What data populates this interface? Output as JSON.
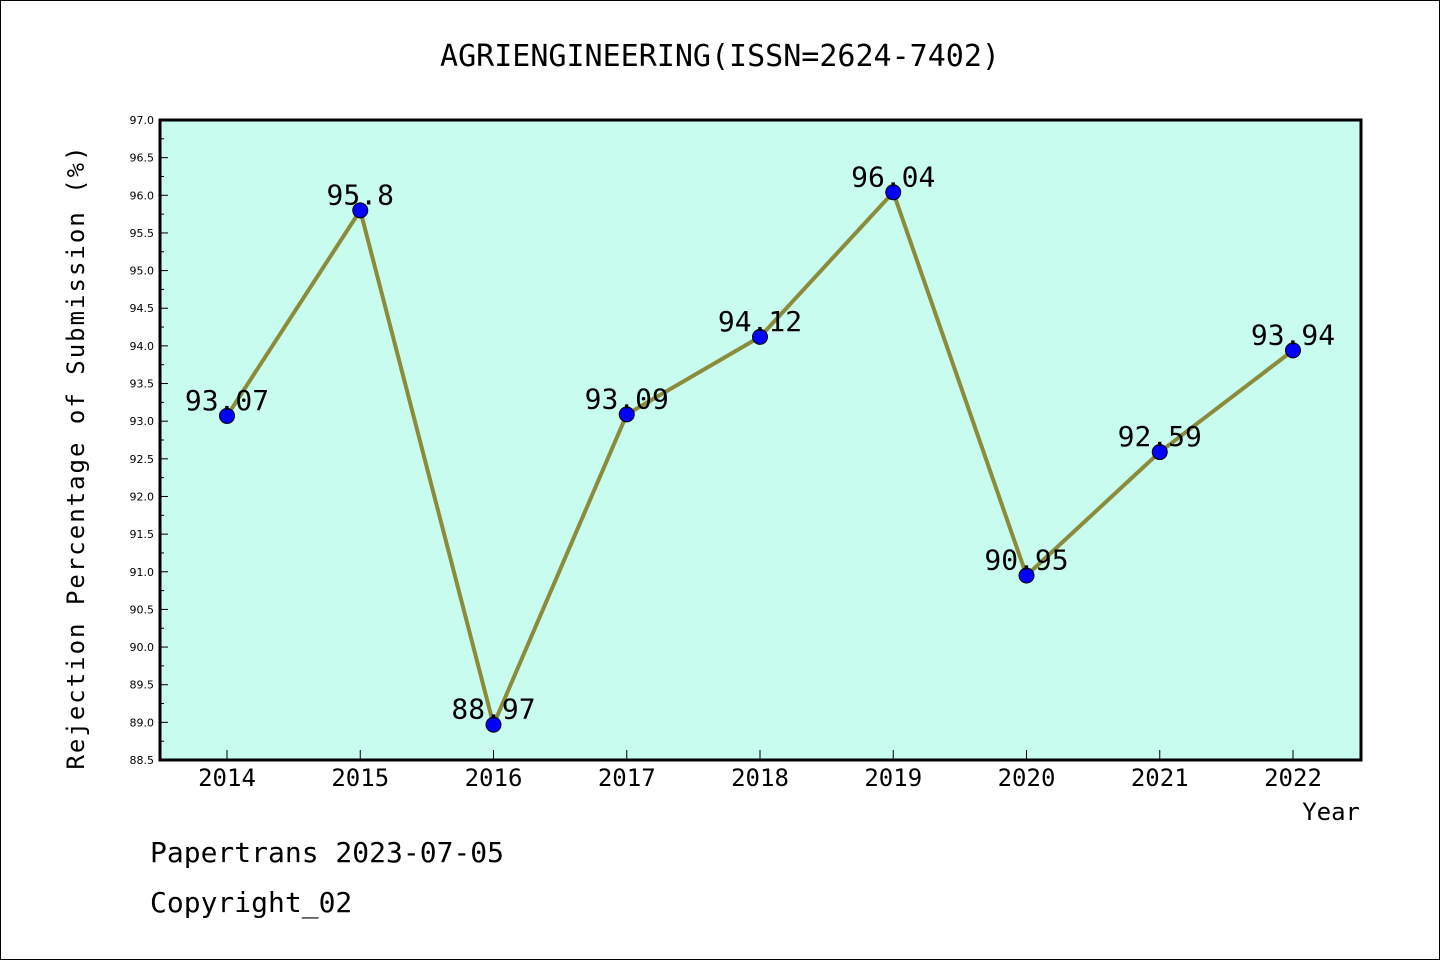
{
  "chart_data": {
    "type": "line",
    "title": "AGRIENGINEERING(ISSN=2624-7402)",
    "xlabel": "Year",
    "ylabel": "Rejection Percentage of Submission (%)",
    "categories": [
      "2014",
      "2015",
      "2016",
      "2017",
      "2018",
      "2019",
      "2020",
      "2021",
      "2022"
    ],
    "values": [
      93.07,
      95.8,
      88.97,
      93.09,
      94.12,
      96.04,
      90.95,
      92.59,
      93.94
    ],
    "data_labels": [
      "93.07",
      "95.8",
      "88.97",
      "93.09",
      "94.12",
      "96.04",
      "90.95",
      "92.59",
      "93.94"
    ],
    "ylim": [
      88.5,
      97.0
    ],
    "yticks": [
      "88.5",
      "89.0",
      "89.5",
      "90.0",
      "90.5",
      "91.0",
      "91.5",
      "92.0",
      "92.5",
      "93.0",
      "93.5",
      "94.0",
      "94.5",
      "95.0",
      "95.5",
      "96.0",
      "96.5",
      "97.0"
    ],
    "grid": false,
    "colors": {
      "background": "#c8fcee",
      "line": "#8b8b3a",
      "marker": "#0000ff"
    }
  },
  "footer": {
    "line1": "Papertrans 2023-07-05",
    "line2": "Copyright_02"
  }
}
